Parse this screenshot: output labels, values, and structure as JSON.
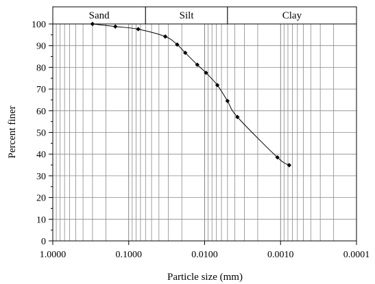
{
  "chart_data": {
    "type": "scatter",
    "title": "",
    "xlabel": "Particle size (mm)",
    "ylabel": "Percent finer",
    "x_scale": "log",
    "x_reversed": true,
    "xlim": [
      1.0,
      0.0001
    ],
    "ylim": [
      0,
      100
    ],
    "x_ticks": [
      "1.0000",
      "0.1000",
      "0.0100",
      "0.0010",
      "0.0001"
    ],
    "y_ticks": [
      "0",
      "10",
      "20",
      "30",
      "40",
      "50",
      "60",
      "70",
      "80",
      "90",
      "100"
    ],
    "grid": true,
    "bands": [
      {
        "label": "Sand",
        "from": 1.0,
        "to": 0.06
      },
      {
        "label": "Silt",
        "from": 0.06,
        "to": 0.005
      },
      {
        "label": "Clay",
        "from": 0.005,
        "to": 0.0001
      }
    ],
    "series": [
      {
        "marker": "diamond",
        "line": "smooth",
        "color": "#000000",
        "points": [
          {
            "x": 0.3,
            "y": 100
          },
          {
            "x": 0.15,
            "y": 98.8
          },
          {
            "x": 0.075,
            "y": 97.6
          },
          {
            "x": 0.033,
            "y": 94.2
          },
          {
            "x": 0.023,
            "y": 90.5
          },
          {
            "x": 0.018,
            "y": 86.7
          },
          {
            "x": 0.0125,
            "y": 81.2
          },
          {
            "x": 0.0096,
            "y": 77.5
          },
          {
            "x": 0.0068,
            "y": 71.8
          },
          {
            "x": 0.005,
            "y": 64.5
          },
          {
            "x": 0.0037,
            "y": 57.1
          },
          {
            "x": 0.0011,
            "y": 38.5
          },
          {
            "x": 0.00077,
            "y": 34.9
          }
        ]
      }
    ]
  }
}
